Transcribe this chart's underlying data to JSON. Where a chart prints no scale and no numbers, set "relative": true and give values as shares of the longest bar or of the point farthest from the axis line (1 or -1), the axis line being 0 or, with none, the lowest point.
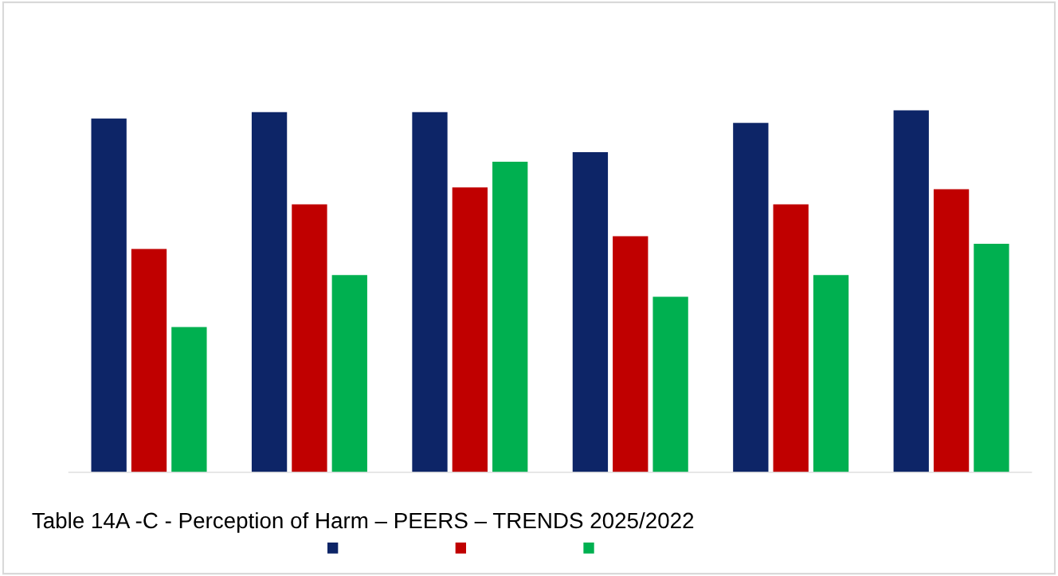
{
  "chart_data": {
    "type": "bar",
    "title": "Table 14A -C - Perception of Harm – PEERS – TRENDS 2025/2022",
    "relative": true,
    "categories": [
      null,
      null,
      null,
      null,
      null,
      null
    ],
    "series": [
      {
        "color": "#0d2567",
        "values": [
          0.977,
          0.995,
          0.995,
          0.884,
          0.965,
          1
        ]
      },
      {
        "color": "#c00000",
        "values": [
          0.617,
          0.74,
          0.787,
          0.652,
          0.74,
          0.782
        ]
      },
      {
        "color": "#00b050",
        "values": [
          0.401,
          0.545,
          0.858,
          0.485,
          0.545,
          0.631
        ]
      }
    ]
  }
}
